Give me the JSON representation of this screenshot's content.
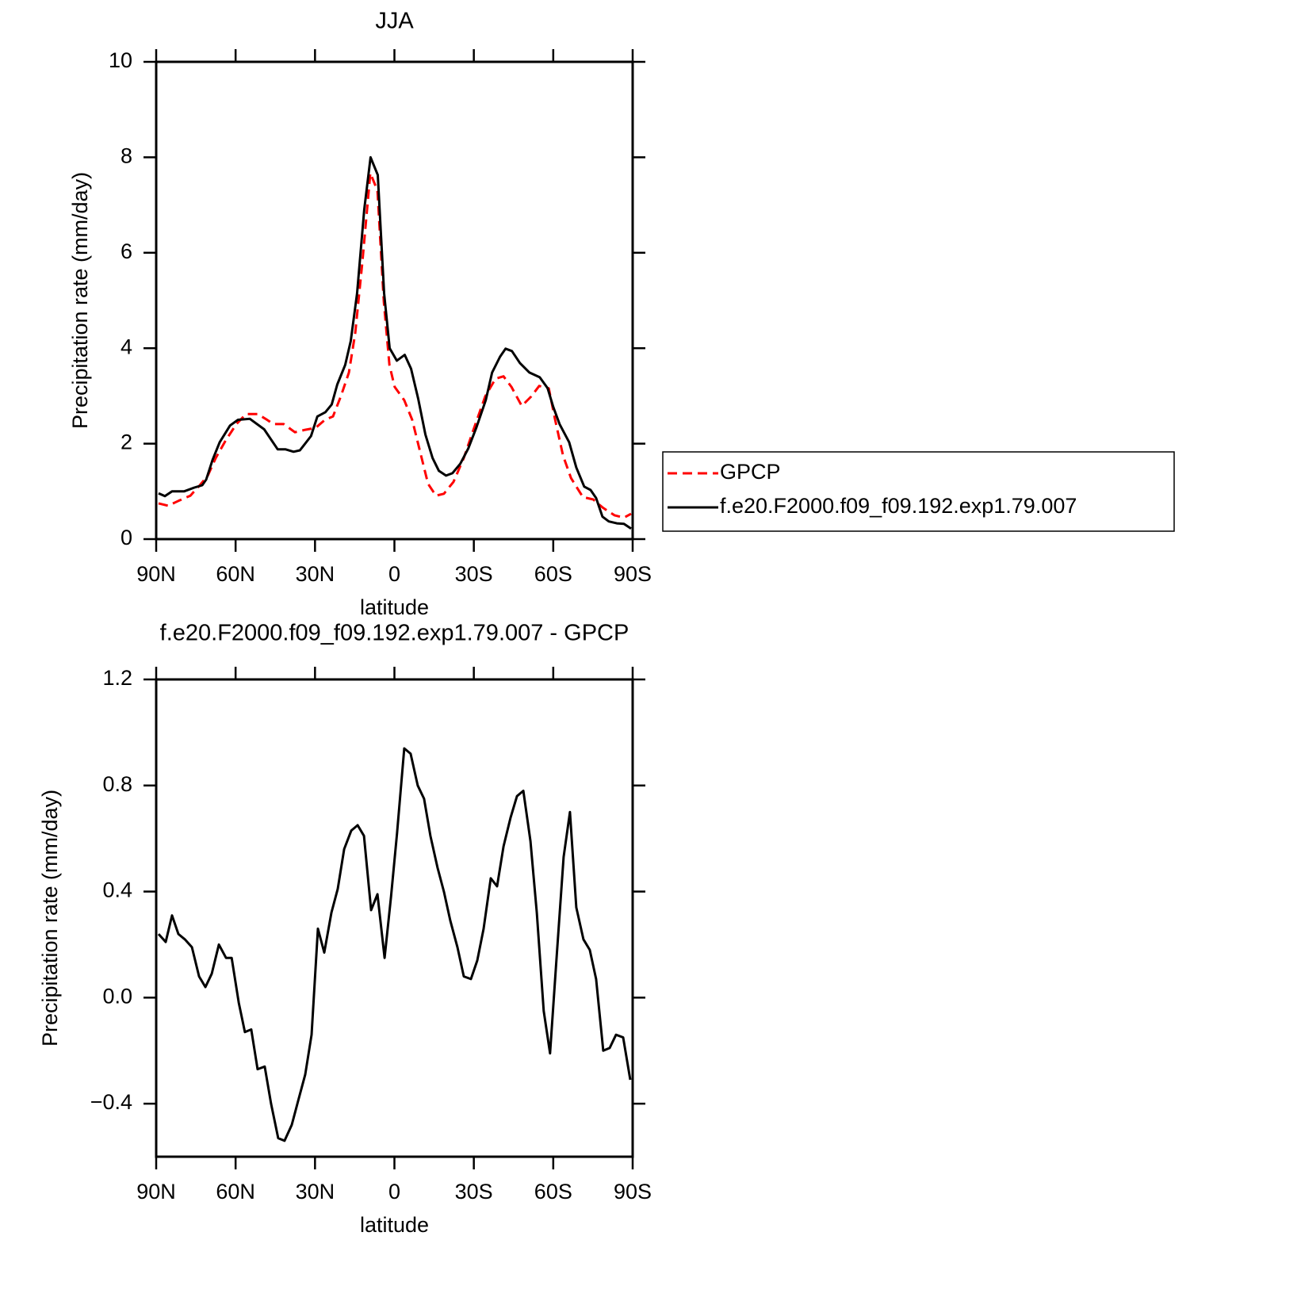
{
  "chart_data": [
    {
      "type": "line",
      "title": "JJA",
      "xlabel": "latitude",
      "ylabel": "Precipitation rate (mm/day)",
      "xlim": [
        90,
        -90
      ],
      "xticks": [
        {
          "value": 90,
          "label": "90N"
        },
        {
          "value": 60,
          "label": "60N"
        },
        {
          "value": 30,
          "label": "30N"
        },
        0,
        {
          "value": -30,
          "label": "30S"
        },
        {
          "value": -60,
          "label": "60S"
        },
        {
          "value": -90,
          "label": "90S"
        }
      ],
      "ylim": [
        0,
        10
      ],
      "yticks": [
        0,
        2,
        4,
        6,
        8,
        10
      ],
      "legend": "right",
      "series": [
        {
          "name": "GPCP",
          "color": "#ff0000",
          "line_style": "dashed",
          "x": [
            89.1,
            85.5,
            81.6,
            77.1,
            73.5,
            70.5,
            67.5,
            63.6,
            59.7,
            56.1,
            51.7,
            48.7,
            45.7,
            41.8,
            37.6,
            33.7,
            29.8,
            26.2,
            23.2,
            20.2,
            17.2,
            14.8,
            12.1,
            9.1,
            6.4,
            4.0,
            1.9,
            -0.1,
            -3.7,
            -6.7,
            -9.7,
            -12.7,
            -15.7,
            -18.7,
            -22.3,
            -26.2,
            -30.1,
            -34.3,
            -38.2,
            -41.2,
            -44.2,
            -48.1,
            -51.7,
            -54.7,
            -58.3,
            -60.7,
            -63.7,
            -66.7,
            -71.2,
            -75.1,
            -78.7,
            -83.1,
            -86.7,
            -89.4
          ],
          "values": [
            0.75,
            0.7,
            0.8,
            0.91,
            1.13,
            1.33,
            1.7,
            2.08,
            2.41,
            2.62,
            2.62,
            2.52,
            2.41,
            2.41,
            2.24,
            2.29,
            2.33,
            2.5,
            2.57,
            3.0,
            3.49,
            4.32,
            5.81,
            7.67,
            7.3,
            4.98,
            3.65,
            3.19,
            2.91,
            2.5,
            1.83,
            1.16,
            0.91,
            0.95,
            1.2,
            1.7,
            2.33,
            2.99,
            3.36,
            3.41,
            3.19,
            2.79,
            2.99,
            3.21,
            3.16,
            2.5,
            1.75,
            1.28,
            0.88,
            0.83,
            0.66,
            0.5,
            0.45,
            0.53
          ]
        },
        {
          "name": "f.e20.F2000.f09_f09.192.exp1.79.007",
          "color": "#000000",
          "line_style": "solid",
          "x": [
            89.1,
            86.7,
            84.0,
            79.5,
            75.6,
            72.6,
            71.1,
            68.7,
            66.0,
            62.1,
            59.1,
            54.6,
            49.2,
            44.1,
            41.1,
            38.1,
            35.7,
            31.5,
            29.1,
            26.1,
            23.7,
            21.6,
            18.6,
            16.5,
            14.1,
            11.4,
            9.0,
            6.3,
            3.9,
            1.8,
            -0.9,
            -3.9,
            -6.3,
            -9.0,
            -11.7,
            -14.4,
            -16.8,
            -19.5,
            -21.9,
            -24.9,
            -27.9,
            -30.9,
            -34.5,
            -36.9,
            -39.9,
            -42.0,
            -44.4,
            -47.4,
            -51.0,
            -54.9,
            -57.9,
            -60.0,
            -62.4,
            -66.0,
            -68.7,
            -71.7,
            -74.1,
            -76.2,
            -78.6,
            -81.0,
            -84.0,
            -86.7,
            -89.4
          ],
          "values": [
            0.96,
            0.9,
            1.0,
            1.0,
            1.08,
            1.13,
            1.25,
            1.66,
            2.03,
            2.38,
            2.5,
            2.52,
            2.3,
            1.88,
            1.88,
            1.83,
            1.86,
            2.16,
            2.57,
            2.66,
            2.82,
            3.24,
            3.65,
            4.15,
            5.15,
            6.9,
            8.0,
            7.63,
            5.15,
            4.0,
            3.74,
            3.86,
            3.57,
            2.94,
            2.19,
            1.7,
            1.43,
            1.33,
            1.38,
            1.58,
            1.9,
            2.33,
            2.91,
            3.49,
            3.82,
            3.99,
            3.94,
            3.69,
            3.49,
            3.39,
            3.16,
            2.77,
            2.41,
            2.03,
            1.5,
            1.1,
            1.03,
            0.86,
            0.47,
            0.37,
            0.33,
            0.32,
            0.22
          ]
        }
      ]
    },
    {
      "type": "line",
      "title": "f.e20.F2000.f09_f09.192.exp1.79.007 - GPCP",
      "xlabel": "latitude",
      "ylabel": "Precipitation rate (mm/day)",
      "xlim": [
        90,
        -90
      ],
      "xticks": [
        {
          "value": 90,
          "label": "90N"
        },
        {
          "value": 60,
          "label": "60N"
        },
        {
          "value": 30,
          "label": "30N"
        },
        0,
        {
          "value": -30,
          "label": "30S"
        },
        {
          "value": -60,
          "label": "60S"
        },
        {
          "value": -90,
          "label": "90S"
        }
      ],
      "ylim": [
        -0.6,
        1.2
      ],
      "yticks": [
        {
          "value": -0.4,
          "label": "−0.4"
        },
        {
          "value": 0,
          "label": "0.0"
        },
        0.4,
        0.8,
        1.2
      ],
      "series": [
        {
          "color": "#000000",
          "line_style": "solid",
          "x": [
            89.1,
            86.4,
            84.0,
            81.6,
            79.2,
            76.5,
            73.8,
            71.4,
            69.0,
            66.3,
            63.6,
            61.5,
            58.8,
            56.5,
            54.1,
            51.7,
            49.0,
            46.6,
            43.9,
            41.5,
            38.8,
            36.4,
            33.7,
            31.3,
            28.9,
            26.5,
            23.8,
            21.4,
            19.0,
            16.3,
            13.9,
            11.5,
            8.8,
            6.4,
            3.7,
            1.3,
            -1.0,
            -3.7,
            -6.1,
            -8.8,
            -11.2,
            -13.6,
            -16.3,
            -18.7,
            -21.1,
            -23.8,
            -26.2,
            -28.9,
            -31.3,
            -33.7,
            -36.4,
            -38.8,
            -41.2,
            -43.9,
            -46.3,
            -48.7,
            -51.4,
            -53.8,
            -56.4,
            -58.8,
            -61.2,
            -63.9,
            -66.3,
            -68.7,
            -71.4,
            -73.8,
            -76.2,
            -78.9,
            -81.3,
            -83.7,
            -86.4,
            -89.1
          ],
          "values": [
            0.24,
            0.21,
            0.31,
            0.24,
            0.22,
            0.19,
            0.08,
            0.04,
            0.09,
            0.2,
            0.15,
            0.15,
            -0.02,
            -0.13,
            -0.12,
            -0.27,
            -0.26,
            -0.4,
            -0.53,
            -0.54,
            -0.48,
            -0.39,
            -0.29,
            -0.14,
            0.26,
            0.17,
            0.32,
            0.41,
            0.56,
            0.63,
            0.65,
            0.61,
            0.33,
            0.39,
            0.15,
            0.38,
            0.62,
            0.94,
            0.92,
            0.8,
            0.75,
            0.61,
            0.49,
            0.4,
            0.29,
            0.19,
            0.08,
            0.07,
            0.14,
            0.26,
            0.45,
            0.42,
            0.57,
            0.68,
            0.76,
            0.78,
            0.59,
            0.32,
            -0.05,
            -0.21,
            0.14,
            0.53,
            0.7,
            0.34,
            0.22,
            0.18,
            0.07,
            -0.2,
            -0.19,
            -0.14,
            -0.15,
            -0.31
          ]
        }
      ]
    }
  ]
}
